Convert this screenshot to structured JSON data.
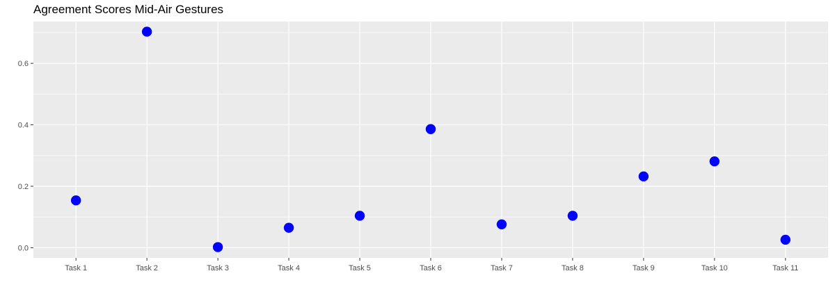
{
  "chart_data": {
    "type": "scatter",
    "title": "Agreement Scores Mid-Air Gestures",
    "xlabel": "",
    "ylabel": "",
    "categories": [
      "Task 1",
      "Task 2",
      "Task 3",
      "Task 4",
      "Task 5",
      "Task 6",
      "Task 7",
      "Task 8",
      "Task 9",
      "Task 10",
      "Task 11"
    ],
    "values": [
      0.154,
      0.703,
      0.002,
      0.065,
      0.104,
      0.386,
      0.076,
      0.104,
      0.232,
      0.281,
      0.026
    ],
    "ylim": [
      -0.033,
      0.736
    ],
    "yticks": [
      0.0,
      0.2,
      0.4,
      0.6
    ],
    "ytick_labels": [
      "0.0",
      "0.2",
      "0.4",
      "0.6"
    ],
    "grid": true,
    "legend": "none",
    "colors": {
      "panel_background": "#EBEBEB",
      "grid": "#FFFFFF",
      "point": "#0000FF",
      "tick_label": "#4D4D4D",
      "tick": "#333333"
    }
  }
}
